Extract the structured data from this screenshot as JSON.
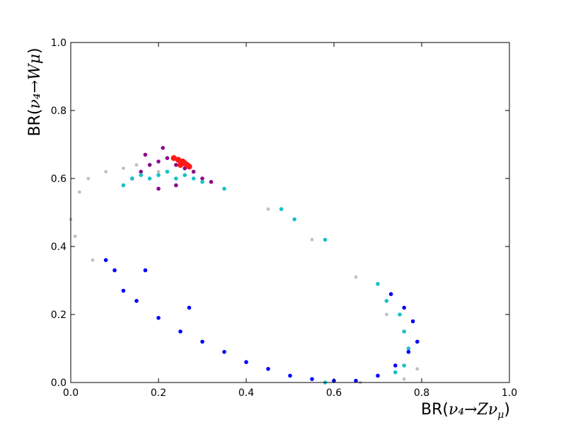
{
  "chart_data": {
    "type": "scatter",
    "title": "",
    "xlabel": {
      "prefix": "BR(",
      "math": "ν₄→Zν",
      "sub": "μ",
      "suffix": ")"
    },
    "ylabel": {
      "prefix": "BR(",
      "math": "ν₄→Wμ",
      "suffix": ")"
    },
    "xlim": [
      0.0,
      1.0
    ],
    "ylim": [
      0.0,
      1.0
    ],
    "x_ticks": [
      "0.0",
      "0.2",
      "0.4",
      "0.6",
      "0.8",
      "1.0"
    ],
    "y_ticks": [
      "0.0",
      "0.2",
      "0.4",
      "0.6",
      "0.8",
      "1.0"
    ],
    "grid": false,
    "legend": "none",
    "series_colors": {
      "gray": "#c0c0c0",
      "purple": "#8b0a8b",
      "cyan": "#17c2c8",
      "blue": "#0000ff",
      "red": "#ff1a1a"
    },
    "series": [
      {
        "color_key": "gray",
        "region": "full ring band",
        "points": [
          [
            0.0,
            0.48
          ],
          [
            0.02,
            0.56
          ],
          [
            0.04,
            0.6
          ],
          [
            0.08,
            0.62
          ],
          [
            0.12,
            0.63
          ],
          [
            0.15,
            0.64
          ],
          [
            0.2,
            0.62
          ],
          [
            0.28,
            0.6
          ],
          [
            0.35,
            0.57
          ],
          [
            0.45,
            0.51
          ],
          [
            0.55,
            0.42
          ],
          [
            0.65,
            0.31
          ],
          [
            0.72,
            0.2
          ],
          [
            0.77,
            0.1
          ],
          [
            0.79,
            0.04
          ],
          [
            0.76,
            0.01
          ],
          [
            0.66,
            0.0
          ],
          [
            0.55,
            0.01
          ],
          [
            0.4,
            0.06
          ],
          [
            0.25,
            0.15
          ],
          [
            0.12,
            0.27
          ],
          [
            0.05,
            0.36
          ],
          [
            0.01,
            0.43
          ]
        ]
      },
      {
        "color_key": "purple",
        "region": "upper-left cluster",
        "points": [
          [
            0.14,
            0.6
          ],
          [
            0.16,
            0.62
          ],
          [
            0.18,
            0.64
          ],
          [
            0.2,
            0.65
          ],
          [
            0.22,
            0.66
          ],
          [
            0.24,
            0.64
          ],
          [
            0.26,
            0.63
          ],
          [
            0.28,
            0.62
          ],
          [
            0.3,
            0.6
          ],
          [
            0.32,
            0.59
          ],
          [
            0.2,
            0.57
          ],
          [
            0.24,
            0.58
          ],
          [
            0.17,
            0.67
          ],
          [
            0.21,
            0.69
          ]
        ]
      },
      {
        "color_key": "cyan",
        "region": "upper-left cluster and lower-right arc",
        "points": [
          [
            0.12,
            0.58
          ],
          [
            0.14,
            0.6
          ],
          [
            0.16,
            0.61
          ],
          [
            0.18,
            0.6
          ],
          [
            0.2,
            0.61
          ],
          [
            0.22,
            0.62
          ],
          [
            0.24,
            0.6
          ],
          [
            0.26,
            0.61
          ],
          [
            0.28,
            0.6
          ],
          [
            0.3,
            0.59
          ],
          [
            0.35,
            0.57
          ],
          [
            0.48,
            0.51
          ],
          [
            0.51,
            0.48
          ],
          [
            0.58,
            0.42
          ],
          [
            0.7,
            0.29
          ],
          [
            0.72,
            0.24
          ],
          [
            0.75,
            0.2
          ],
          [
            0.76,
            0.15
          ],
          [
            0.77,
            0.1
          ],
          [
            0.76,
            0.05
          ],
          [
            0.74,
            0.03
          ],
          [
            0.58,
            0.0
          ]
        ]
      },
      {
        "color_key": "blue",
        "region": "lower band",
        "points": [
          [
            0.08,
            0.36
          ],
          [
            0.1,
            0.33
          ],
          [
            0.12,
            0.27
          ],
          [
            0.15,
            0.24
          ],
          [
            0.2,
            0.19
          ],
          [
            0.25,
            0.15
          ],
          [
            0.3,
            0.12
          ],
          [
            0.35,
            0.09
          ],
          [
            0.4,
            0.06
          ],
          [
            0.45,
            0.04
          ],
          [
            0.5,
            0.02
          ],
          [
            0.55,
            0.01
          ],
          [
            0.6,
            0.005
          ],
          [
            0.65,
            0.005
          ],
          [
            0.7,
            0.02
          ],
          [
            0.74,
            0.05
          ],
          [
            0.77,
            0.09
          ],
          [
            0.79,
            0.12
          ],
          [
            0.78,
            0.18
          ],
          [
            0.76,
            0.22
          ],
          [
            0.73,
            0.26
          ],
          [
            0.17,
            0.33
          ],
          [
            0.27,
            0.22
          ]
        ]
      },
      {
        "color_key": "red",
        "region": "upper-left cluster",
        "points": [
          [
            0.25,
            0.64
          ],
          [
            0.255,
            0.65
          ],
          [
            0.26,
            0.645
          ],
          [
            0.265,
            0.64
          ],
          [
            0.27,
            0.635
          ],
          [
            0.245,
            0.655
          ],
          [
            0.235,
            0.66
          ]
        ]
      }
    ]
  }
}
